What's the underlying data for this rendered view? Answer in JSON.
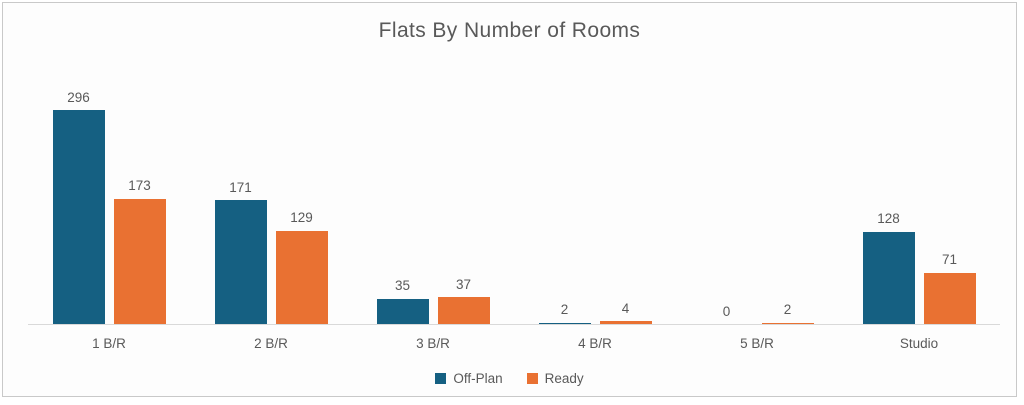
{
  "chart_data": {
    "type": "bar",
    "title": "Flats By Number of Rooms",
    "categories": [
      "1 B/R",
      "2 B/R",
      "3 B/R",
      "4 B/R",
      "5 B/R",
      "Studio"
    ],
    "series": [
      {
        "name": "Off-Plan",
        "color": "#156082",
        "values": [
          296,
          171,
          35,
          2,
          0,
          128
        ]
      },
      {
        "name": "Ready",
        "color": "#E97132",
        "values": [
          173,
          129,
          37,
          4,
          2,
          71
        ]
      }
    ],
    "xlabel": "",
    "ylabel": "",
    "ylim": [
      0,
      300
    ],
    "grid": false,
    "data_labels": true,
    "legend_position": "bottom",
    "text_color": "#595959",
    "axis_line_color": "#D9D9D9"
  }
}
